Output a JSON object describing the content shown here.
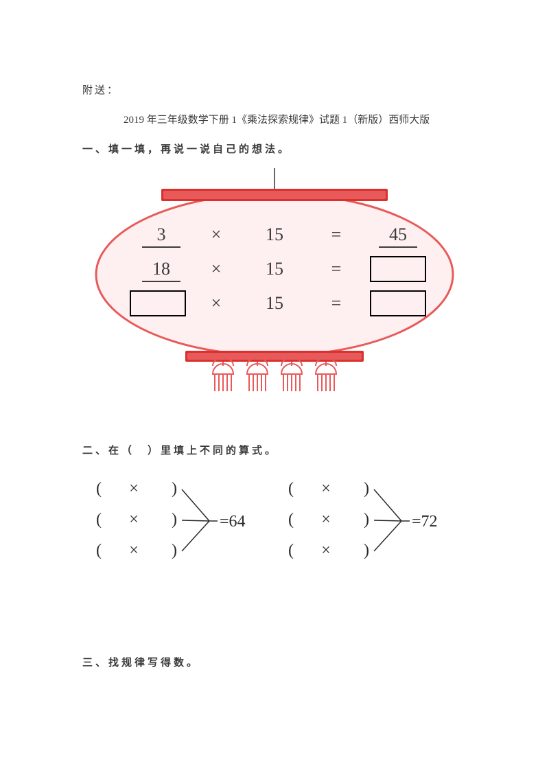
{
  "header": {
    "attach": "附送："
  },
  "title": {
    "text": "2019 年三年级数学下册 1《乘法探索规律》试题 1（新版）西师大版"
  },
  "section1": {
    "title": "一、填一填，再说一说自己的想法。",
    "rows": [
      {
        "a": "3",
        "op": "×",
        "b": "15",
        "eq": "=",
        "c": "45",
        "box_a": false,
        "box_c": false,
        "underline_a": true,
        "underline_c": true
      },
      {
        "a": "18",
        "op": "×",
        "b": "15",
        "eq": "=",
        "c": "",
        "box_a": false,
        "box_c": true,
        "underline_a": true,
        "underline_c": false
      },
      {
        "a": "",
        "op": "×",
        "b": "15",
        "eq": "=",
        "c": "",
        "box_a": true,
        "box_c": true,
        "underline_a": false,
        "underline_c": false
      }
    ],
    "colors": {
      "ellipse_fill": "#fef0f0",
      "ellipse_stroke": "#e85a5a",
      "bar_fill1": "#d93030",
      "bar_fill2": "#e85a5a",
      "tassel_stroke": "#e85a5a",
      "text": "#3a3a3a",
      "box_stroke": "#000000",
      "underline": "#000000",
      "hanger": "#666666"
    },
    "font_size": 26
  },
  "section2": {
    "title": "二、在（　）里填上不同的算式。",
    "groups": [
      {
        "result": "64"
      },
      {
        "result": "72"
      }
    ],
    "op": "×",
    "colors": {
      "text": "#2a2a2a",
      "line": "#2a2a2a"
    },
    "font_size": 24
  },
  "section3": {
    "title": "三、找规律写得数。"
  }
}
